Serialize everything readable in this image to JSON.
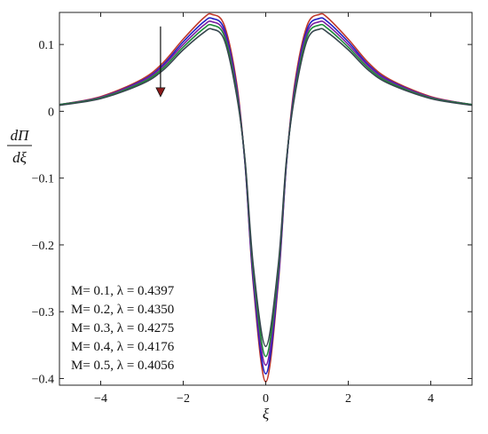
{
  "chart_data": {
    "type": "line",
    "xlabel": "ξ",
    "ylabel_numerator": "dΠ",
    "ylabel_denominator": "dξ",
    "xlim": [
      -5,
      5
    ],
    "ylim": [
      -0.41,
      0.148
    ],
    "x_ticks": [
      -4,
      -2,
      0,
      2,
      4
    ],
    "x_tick_labels": [
      "−4",
      "−2",
      "0",
      "2",
      "4"
    ],
    "y_ticks": [
      0.1,
      0,
      -0.1,
      -0.2,
      -0.3,
      -0.4
    ],
    "y_tick_labels": [
      "0.1",
      "0",
      "−0.1",
      "−0.2",
      "−0.3",
      "−0.4"
    ],
    "grid": false,
    "legend_position": "bottom-left",
    "legend_entries": [
      "M=  0.1,  λ = 0.4397",
      "M=  0.2,  λ = 0.4350",
      "M=  0.3,  λ =  0.4275",
      "M=  0.4,  λ = 0.4176",
      "M=  0.5,  λ = 0.4056"
    ],
    "annotation": "arrow-down-near-left-peak",
    "x": [
      -5,
      -4,
      -3,
      -2.5,
      -2,
      -1.5,
      -1.3,
      -1,
      -0.7,
      -0.5,
      -0.3,
      0,
      0.3,
      0.5,
      0.7,
      1,
      1.3,
      1.5,
      2,
      2.5,
      3,
      4,
      5
    ],
    "series": [
      {
        "color": "#c0392b",
        "values": [
          0.01,
          0.022,
          0.048,
          0.072,
          0.108,
          0.14,
          0.145,
          0.128,
          0.04,
          -0.08,
          -0.26,
          -0.405,
          -0.26,
          -0.08,
          0.04,
          0.128,
          0.145,
          0.14,
          0.108,
          0.072,
          0.048,
          0.022,
          0.01
        ]
      },
      {
        "color": "#1f1fc4",
        "values": [
          0.01,
          0.021,
          0.046,
          0.069,
          0.104,
          0.134,
          0.139,
          0.122,
          0.034,
          -0.08,
          -0.255,
          -0.393,
          -0.255,
          -0.08,
          0.034,
          0.122,
          0.139,
          0.134,
          0.104,
          0.069,
          0.046,
          0.021,
          0.01
        ]
      },
      {
        "color": "#7a1fa2",
        "values": [
          0.01,
          0.021,
          0.045,
          0.067,
          0.1,
          0.129,
          0.134,
          0.117,
          0.03,
          -0.078,
          -0.248,
          -0.38,
          -0.248,
          -0.078,
          0.03,
          0.117,
          0.134,
          0.129,
          0.1,
          0.067,
          0.045,
          0.021,
          0.01
        ]
      },
      {
        "color": "#1f8a3a",
        "values": [
          0.01,
          0.02,
          0.043,
          0.064,
          0.096,
          0.124,
          0.129,
          0.112,
          0.026,
          -0.076,
          -0.24,
          -0.367,
          -0.24,
          -0.076,
          0.026,
          0.112,
          0.129,
          0.124,
          0.096,
          0.064,
          0.043,
          0.02,
          0.01
        ]
      },
      {
        "color": "#37474f",
        "values": [
          0.009,
          0.019,
          0.041,
          0.061,
          0.092,
          0.118,
          0.123,
          0.106,
          0.022,
          -0.074,
          -0.232,
          -0.352,
          -0.232,
          -0.074,
          0.022,
          0.106,
          0.123,
          0.118,
          0.092,
          0.061,
          0.041,
          0.019,
          0.009
        ]
      }
    ]
  }
}
